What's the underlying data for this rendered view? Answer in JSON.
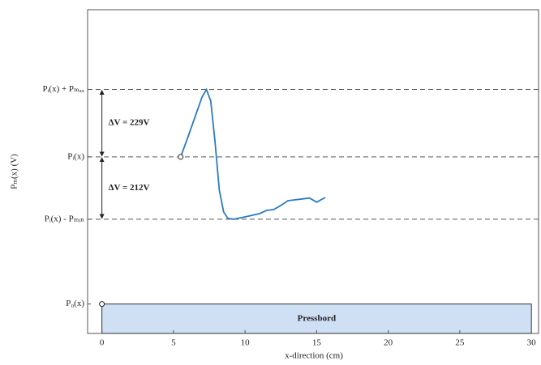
{
  "chart_data": {
    "type": "line",
    "xlabel": "x-direction (cm)",
    "ylabel": "Pₘ(x) (V)",
    "xlim": [
      -1,
      30.5
    ],
    "xticks": [
      0,
      5,
      10,
      15,
      20,
      25,
      30
    ],
    "ylim": [
      -600,
      500
    ],
    "yticks": [
      {
        "value": 229,
        "label": "Pᵢ(x) + Pₘₐₓ"
      },
      {
        "value": 0,
        "label": "Pᵢ(x)"
      },
      {
        "value": -212,
        "label": "Pᵢ(x) - Pₘᵢₙ"
      },
      {
        "value": -500,
        "label": "P₀(x)"
      }
    ],
    "grid": "dashed",
    "series": [
      {
        "color": "#2b7bc0",
        "x": [
          5.5,
          6.0,
          6.5,
          7.0,
          7.3,
          7.6,
          7.9,
          8.2,
          8.5,
          8.8,
          9.2,
          10,
          11,
          11.5,
          12,
          12.5,
          13,
          13.5,
          14,
          14.5,
          15,
          15.6
        ],
        "values": [
          0,
          66,
          135,
          204,
          229,
          190,
          52,
          -113,
          -187,
          -209,
          -212,
          -204,
          -193,
          -182,
          -179,
          -165,
          -149,
          -146,
          -143,
          -140,
          -154,
          -138
        ]
      }
    ],
    "points": [
      {
        "x": 5.5,
        "y": 0
      },
      {
        "x": 0,
        "y": -500
      }
    ],
    "annotations": [
      "ΔV = 229V",
      "ΔV = 212V"
    ],
    "pressboard": {
      "label": "Pressbord",
      "x": [
        0,
        30
      ]
    }
  }
}
